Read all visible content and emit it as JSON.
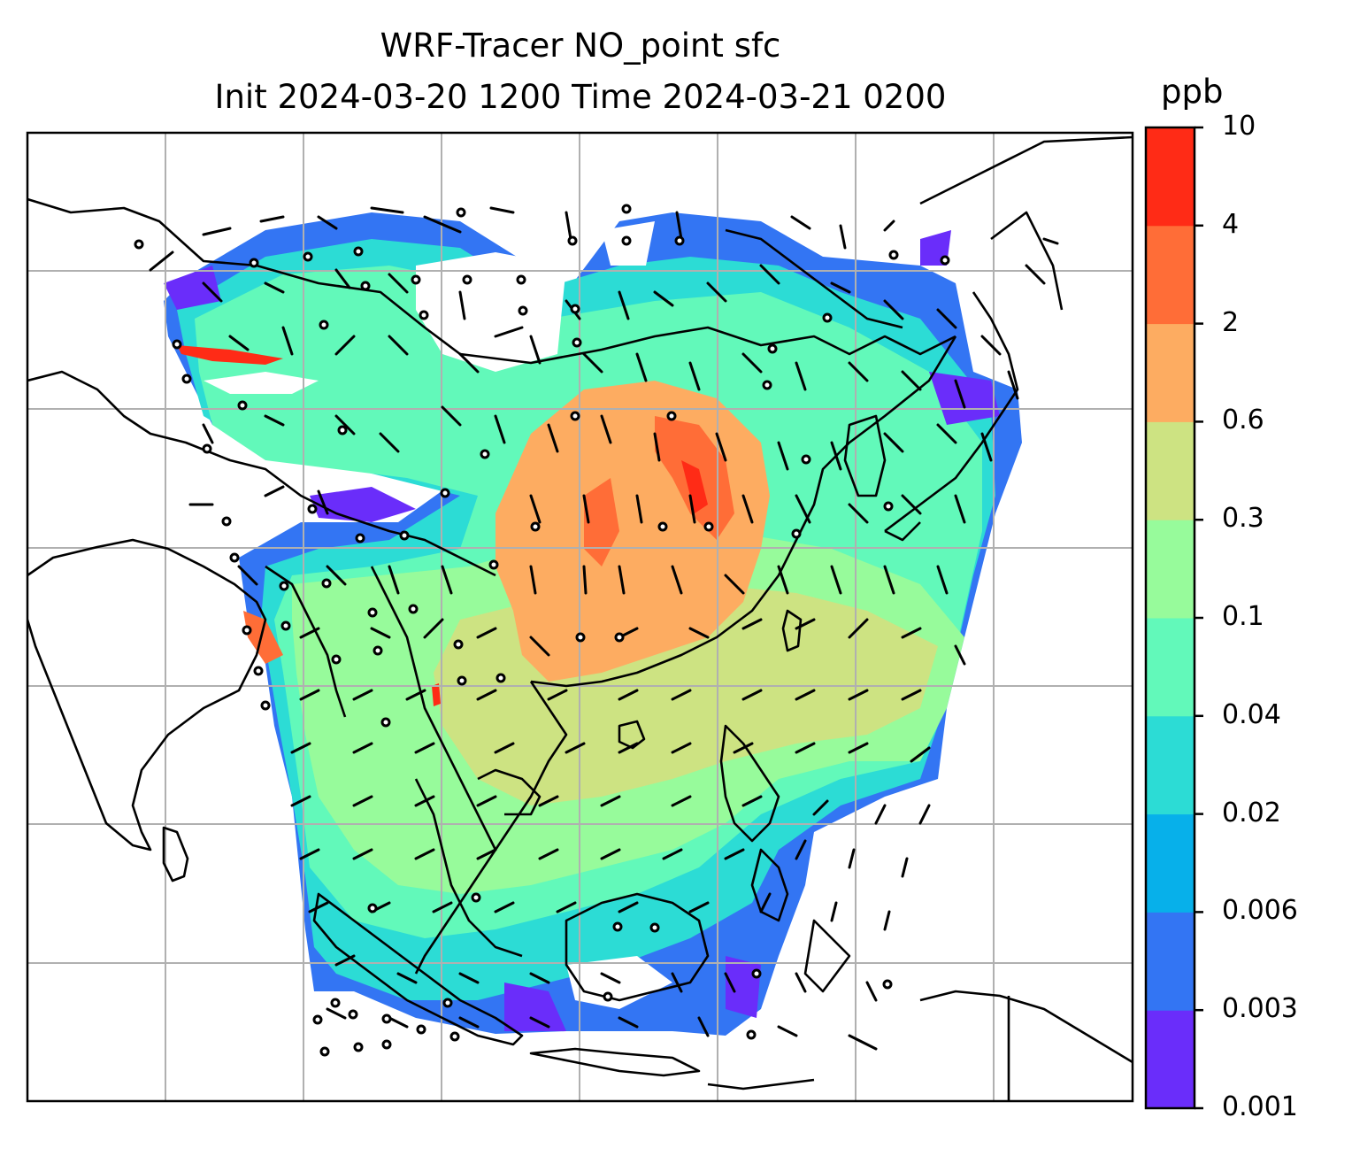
{
  "title": {
    "line1": "WRF-Tracer NO_point sfc",
    "line2": "Init 2024-03-20 1200 Time 2024-03-21 0200"
  },
  "colorbar": {
    "unit": "ppb",
    "ticks": [
      "0.001",
      "0.003",
      "0.006",
      "0.02",
      "0.04",
      "0.1",
      "0.3",
      "0.6",
      "2",
      "4",
      "10"
    ],
    "colors": [
      "#6a2dfa",
      "#3375f3",
      "#07b0ea",
      "#2cdcd5",
      "#62f9ba",
      "#97fb9b",
      "#cde382",
      "#fdac61",
      "#ff6d37",
      "#ff2b16"
    ]
  }
}
